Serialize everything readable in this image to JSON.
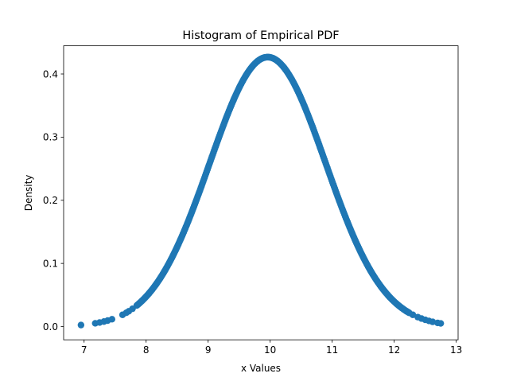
{
  "chart_data": {
    "type": "scatter",
    "title": "Histogram of Empirical PDF",
    "xlabel": "x Values",
    "ylabel": "Density",
    "xlim": [
      6.67,
      13.03
    ],
    "ylim": [
      -0.021,
      0.4446
    ],
    "xticks": [
      7,
      8,
      9,
      10,
      11,
      12,
      13
    ],
    "xtick_labels": [
      "7",
      "8",
      "9",
      "10",
      "11",
      "12",
      "13"
    ],
    "yticks": [
      0.0,
      0.1,
      0.2,
      0.3,
      0.4
    ],
    "ytick_labels": [
      "0.0",
      "0.1",
      "0.2",
      "0.3",
      "0.4"
    ],
    "grid": false,
    "legend": "none",
    "marker_color": "#1f77b4",
    "series": [
      {
        "distribution": "normal",
        "mean": 9.96,
        "std": 0.935,
        "x_min": 6.95,
        "x_max": 12.75,
        "sparse_tail_points": [
          6.95,
          7.18,
          7.25,
          7.32,
          7.38,
          7.45,
          7.62,
          7.68,
          7.72,
          7.78,
          12.3,
          12.38,
          12.44,
          12.5,
          12.56,
          12.62,
          12.7,
          12.75
        ],
        "dense_range": [
          7.85,
          12.25
        ],
        "dense_step": 0.012
      }
    ]
  }
}
